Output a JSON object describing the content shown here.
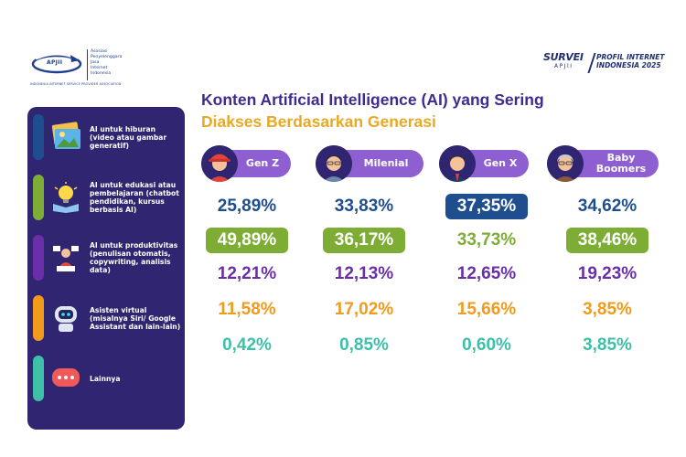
{
  "header": {
    "apjii": {
      "logo_word": "APJII",
      "name_lines": [
        "Asosiasi",
        "Penyelenggara",
        "Jasa",
        "Internet",
        "Indonesia"
      ],
      "tagline": "INDONESIA INTERNET SERVICE PROVIDER ASSOCIATION"
    },
    "survey": {
      "title": "SURVEI",
      "sub": "APJII",
      "profil_line1": "PROFIL INTERNET",
      "profil_line2": "INDONESIA 2025"
    }
  },
  "colors": {
    "panel": "#2f2570",
    "pill": "#8e5fd0",
    "title_primary": "#3f2b8f",
    "title_accent": "#e8a923",
    "series": [
      "#1f4e8f",
      "#7dad35",
      "#6a2fa8",
      "#f29a1c",
      "#3ebfa8"
    ]
  },
  "chart_data": {
    "type": "table",
    "title_line1": "Konten Artificial Intelligence (AI) yang Sering",
    "title_line2": "Diakses Berdasarkan Generasi",
    "categories": [
      {
        "label": "AI untuk hiburan (video atau gambar generatif)",
        "icon": "image-gallery-icon"
      },
      {
        "label": "AI untuk edukasi atau pembelajaran (chatbot pendidikan, kursus berbasis AI)",
        "icon": "lightbulb-book-icon"
      },
      {
        "label": "AI untuk produktivitas (penulisan otomatis, copywriting, analisis data)",
        "icon": "productivity-worker-icon"
      },
      {
        "label": "Asisten virtual (misalnya Siri/ Google Assistant dan lain-lain)",
        "icon": "robot-assistant-icon"
      },
      {
        "label": "Lainnya",
        "icon": "chat-bubble-icon"
      }
    ],
    "generations": [
      {
        "name": "Gen Z",
        "avatar": "genz-avatar-icon",
        "values": [
          "25,89%",
          "49,89%",
          "12,21%",
          "11,58%",
          "0,42%"
        ],
        "highlight": 1
      },
      {
        "name": "Milenial",
        "avatar": "milenial-avatar-icon",
        "values": [
          "33,83%",
          "36,17%",
          "12,13%",
          "17,02%",
          "0,85%"
        ],
        "highlight": 1
      },
      {
        "name": "Gen X",
        "avatar": "genx-avatar-icon",
        "values": [
          "37,35%",
          "33,73%",
          "12,65%",
          "15,66%",
          "0,60%"
        ],
        "highlight": 0
      },
      {
        "name": "Baby Boomers",
        "avatar": "boomer-avatar-icon",
        "values": [
          "34,62%",
          "38,46%",
          "19,23%",
          "3,85%",
          "3,85%"
        ],
        "highlight": 1
      }
    ]
  }
}
